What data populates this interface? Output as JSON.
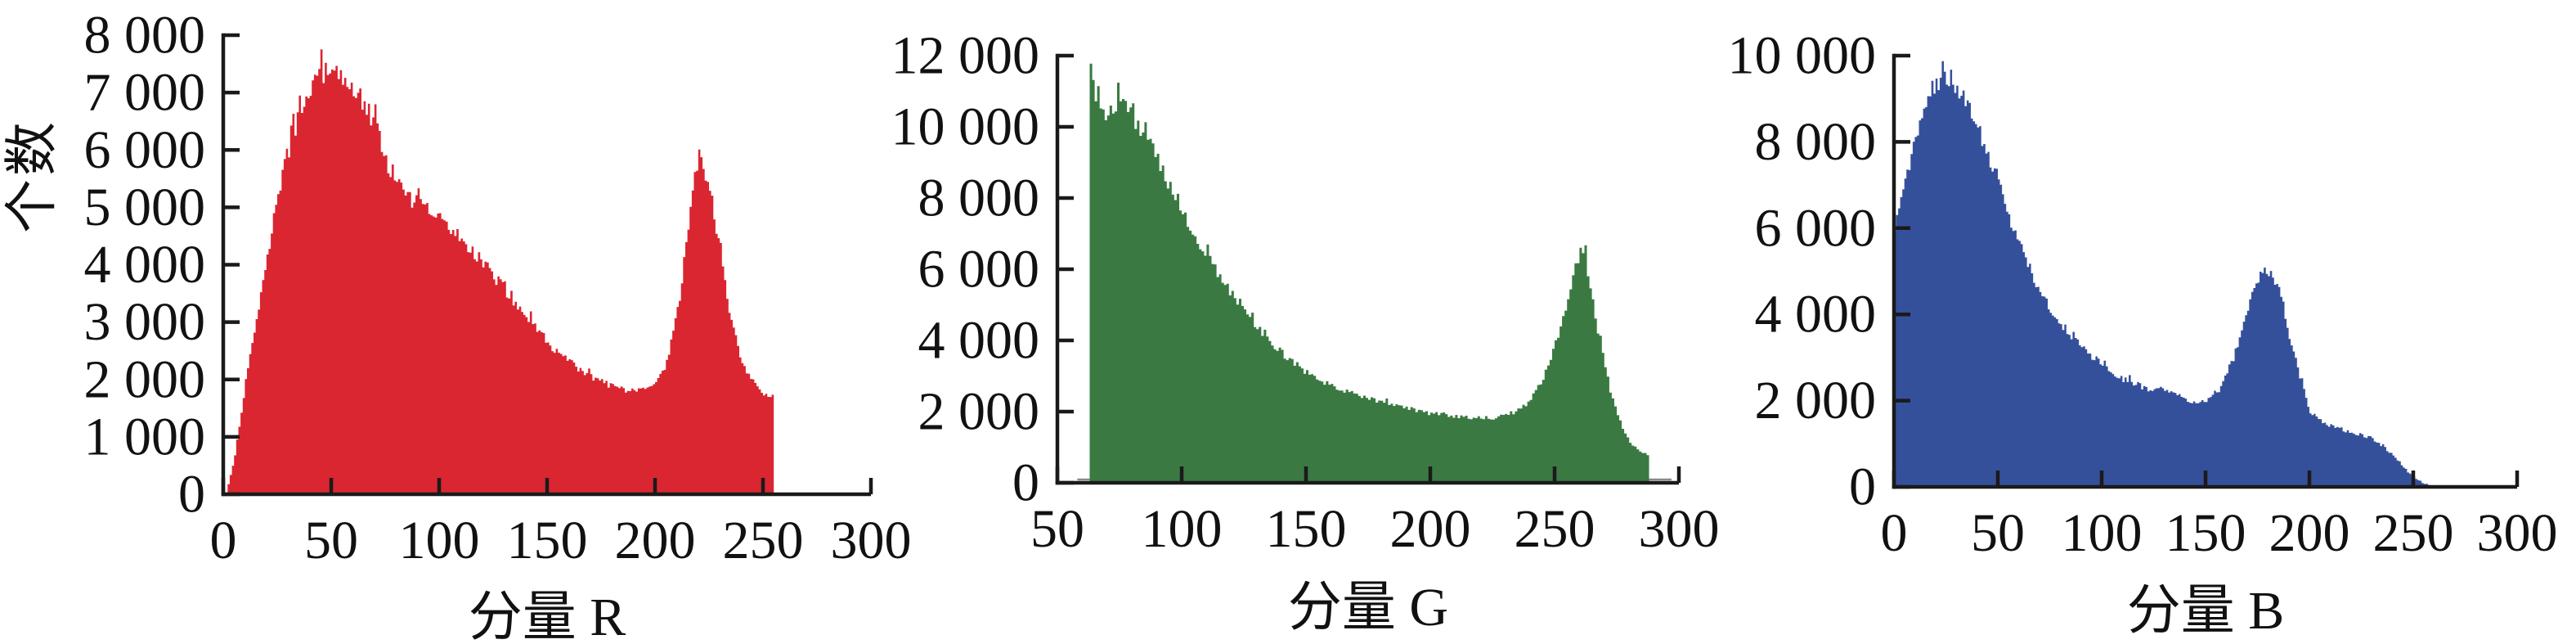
{
  "figure": {
    "ylabel": "个数",
    "background": "#ffffff",
    "axis_color": "#1a1a1a",
    "grid": false,
    "legend": "none"
  },
  "chart_data": [
    {
      "type": "bar",
      "title": "",
      "xlabel": "分量 R",
      "ylabel": "个数",
      "color": "#da2631",
      "xlim": [
        0,
        300
      ],
      "ylim": [
        0,
        8000
      ],
      "x_ticks": [
        0,
        50,
        100,
        150,
        200,
        250,
        300
      ],
      "x_tick_labels": [
        "0",
        "50",
        "100",
        "150",
        "200",
        "250",
        "300"
      ],
      "y_ticks": [
        0,
        1000,
        2000,
        3000,
        4000,
        5000,
        6000,
        7000,
        8000
      ],
      "y_tick_labels": [
        "0",
        "1 000",
        "2 000",
        "3 000",
        "4 000",
        "5 000",
        "6 000",
        "7 000",
        "8 000"
      ],
      "data_range": [
        2,
        254
      ],
      "peaks": [
        {
          "x": 46,
          "y": 7350
        },
        {
          "x": 220,
          "y": 5900
        }
      ],
      "envelope": {
        "x": [
          1.5,
          3,
          5,
          7,
          10,
          13,
          16,
          19,
          22,
          25,
          28,
          31,
          34,
          37,
          40,
          43,
          46,
          50,
          54,
          58,
          62,
          66,
          70,
          74,
          78,
          82,
          86,
          90,
          95,
          100,
          105,
          110,
          115,
          120,
          125,
          130,
          135,
          140,
          145,
          150,
          155,
          160,
          165,
          170,
          175,
          180,
          185,
          190,
          195,
          200,
          203,
          206,
          209,
          212,
          215,
          218,
          220,
          222,
          225,
          228,
          231,
          234,
          237,
          240,
          243,
          246,
          249,
          252,
          254
        ],
        "y": [
          100,
          350,
          700,
          1150,
          2000,
          2650,
          3200,
          3900,
          4600,
          5200,
          5750,
          6150,
          6500,
          6850,
          7100,
          7250,
          7350,
          7300,
          7250,
          7120,
          7000,
          6700,
          6450,
          5950,
          5500,
          5300,
          5150,
          5050,
          4950,
          4800,
          4600,
          4450,
          4250,
          4050,
          3800,
          3550,
          3300,
          3100,
          2850,
          2650,
          2450,
          2300,
          2150,
          2050,
          1950,
          1880,
          1820,
          1780,
          1810,
          1920,
          2100,
          2450,
          3000,
          3700,
          4700,
          5500,
          5870,
          5750,
          5300,
          4600,
          3900,
          3200,
          2750,
          2300,
          2050,
          1900,
          1800,
          1720,
          1680
        ]
      }
    },
    {
      "type": "bar",
      "title": "",
      "xlabel": "分量 G",
      "ylabel": "",
      "color": "#3a7a42",
      "xlim": [
        50,
        300
      ],
      "ylim": [
        0,
        12000
      ],
      "x_ticks": [
        50,
        100,
        150,
        200,
        250,
        300
      ],
      "x_tick_labels": [
        "50",
        "100",
        "150",
        "200",
        "250",
        "300"
      ],
      "y_ticks": [
        0,
        2000,
        4000,
        6000,
        8000,
        10000,
        12000
      ],
      "y_tick_labels": [
        "0",
        "2 000",
        "4 000",
        "6 000",
        "8 000",
        "10 000",
        "12 000"
      ],
      "data_range": [
        63,
        287
      ],
      "peaks": [
        {
          "x": 63,
          "y": 11900
        },
        {
          "x": 260,
          "y": 6550
        }
      ],
      "baseline_artifact": {
        "x_start": 58,
        "x_end": 297,
        "color": "#8a8a8a"
      },
      "envelope": {
        "x": [
          63,
          64,
          65,
          66,
          67,
          68,
          70,
          73,
          75,
          77,
          79,
          81,
          83,
          85,
          88,
          91,
          94,
          97,
          100,
          104,
          108,
          112,
          116,
          120,
          124,
          128,
          132,
          136,
          140,
          145,
          150,
          155,
          160,
          165,
          170,
          175,
          180,
          185,
          190,
          195,
          200,
          205,
          210,
          215,
          220,
          225,
          230,
          234,
          238,
          242,
          246,
          250,
          253,
          256,
          258,
          260,
          262,
          264,
          266,
          268,
          270,
          272,
          274,
          276,
          278,
          280,
          283,
          285,
          287
        ],
        "y": [
          11900,
          11300,
          10800,
          10500,
          10350,
          10300,
          10450,
          10600,
          10650,
          10500,
          10350,
          10150,
          9950,
          9700,
          9300,
          8900,
          8450,
          8050,
          7650,
          7050,
          6550,
          6100,
          5650,
          5250,
          4850,
          4500,
          4200,
          3900,
          3650,
          3350,
          3100,
          2900,
          2750,
          2600,
          2480,
          2370,
          2270,
          2170,
          2090,
          2010,
          1950,
          1900,
          1860,
          1830,
          1810,
          1830,
          1900,
          2000,
          2200,
          2550,
          3100,
          3950,
          4650,
          5500,
          6050,
          6550,
          6300,
          5600,
          4700,
          3900,
          3200,
          2600,
          2100,
          1700,
          1400,
          1150,
          950,
          850,
          780
        ]
      }
    },
    {
      "type": "bar",
      "title": "",
      "xlabel": "分量 B",
      "ylabel": "",
      "color": "#35509b",
      "xlim": [
        0,
        300
      ],
      "ylim": [
        0,
        10000
      ],
      "x_ticks": [
        0,
        50,
        100,
        150,
        200,
        250,
        300
      ],
      "x_tick_labels": [
        "0",
        "50",
        "100",
        "150",
        "200",
        "250",
        "300"
      ],
      "y_ticks": [
        0,
        2000,
        4000,
        6000,
        8000,
        10000
      ],
      "y_tick_labels": [
        "0",
        "2 000",
        "4 000",
        "6 000",
        "8 000",
        "10 000"
      ],
      "data_range": [
        0,
        259
      ],
      "peaks": [
        {
          "x": 24,
          "y": 9500
        },
        {
          "x": 179,
          "y": 5050
        }
      ],
      "envelope": {
        "x": [
          0,
          3,
          6,
          9,
          12,
          15,
          18,
          21,
          24,
          27,
          30,
          33,
          36,
          40,
          44,
          48,
          52,
          56,
          60,
          64,
          68,
          72,
          76,
          80,
          85,
          90,
          95,
          100,
          105,
          110,
          115,
          120,
          124,
          128,
          132,
          136,
          140,
          144,
          148,
          152,
          156,
          160,
          164,
          168,
          172,
          176,
          179,
          182,
          185,
          188,
          191,
          194,
          197,
          200,
          204,
          208,
          212,
          216,
          220,
          225,
          230,
          235,
          240,
          244,
          248,
          252,
          255,
          259
        ],
        "y": [
          6000,
          6600,
          7200,
          7800,
          8350,
          8750,
          9100,
          9350,
          9500,
          9450,
          9300,
          9050,
          8750,
          8300,
          7800,
          7250,
          6700,
          6150,
          5600,
          5150,
          4750,
          4350,
          4050,
          3800,
          3500,
          3250,
          3000,
          2820,
          2650,
          2500,
          2400,
          2300,
          2220,
          2260,
          2200,
          2120,
          2020,
          1960,
          1960,
          2060,
          2260,
          2600,
          3100,
          3750,
          4400,
          4900,
          5050,
          4900,
          4550,
          3950,
          3300,
          2750,
          2250,
          1750,
          1550,
          1450,
          1380,
          1320,
          1260,
          1200,
          1120,
          950,
          700,
          500,
          300,
          160,
          70,
          10
        ]
      }
    }
  ]
}
